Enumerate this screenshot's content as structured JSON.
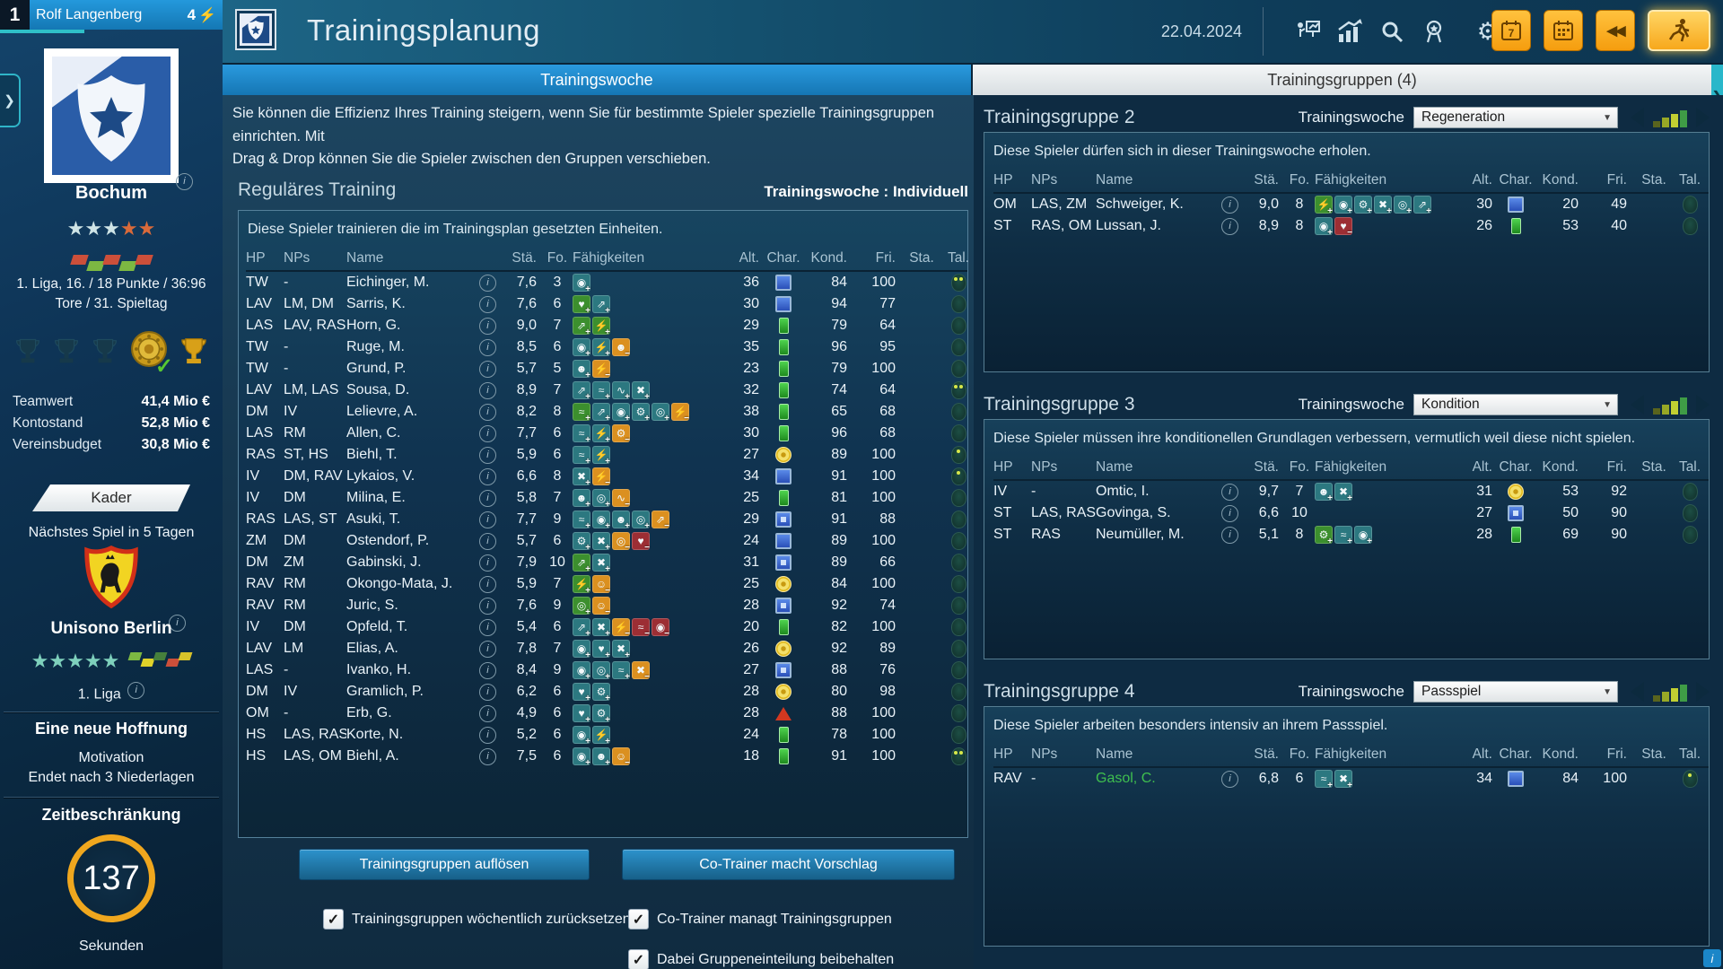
{
  "top_bar": {
    "slot_number": "1",
    "manager_name": "Rolf Langenberg",
    "badge_count": "4",
    "badge_icon": "lightning-icon"
  },
  "header": {
    "title": "Trainingsplanung",
    "date": "22.04.2024",
    "icons": [
      "trainer-presentation-icon",
      "statistics-icon",
      "search-icon",
      "medal-icon",
      "settings-icon"
    ],
    "quick_buttons": [
      "calendar-week-7-button",
      "calendar-button",
      "rewind-button",
      "continue-training-button"
    ],
    "active_quick_button": "continue-training-button",
    "calendar7_digit": "7"
  },
  "sidebar": {
    "club_name": "Bochum",
    "stars_light": 3,
    "stars_orange": 2,
    "form_colors": [
      "#cc4f3a",
      "#7cb842",
      "#cc4f3a",
      "#7cb842",
      "#cc4f3a"
    ],
    "league_line1": "1. Liga, 16. / 18 Punkte / 36:96",
    "league_line2": "Tore / 31. Spieltag",
    "trophies": [
      "trophy-dark-icon",
      "trophy-dark-icon",
      "trophy-dark-icon",
      "championship-plate-check-icon",
      "gold-cup-icon"
    ],
    "finances": [
      {
        "label": "Teamwert",
        "value": "41,4 Mio €"
      },
      {
        "label": "Kontostand",
        "value": "52,8 Mio €"
      },
      {
        "label": "Vereinsbudget",
        "value": "30,8 Mio €"
      }
    ],
    "kader_button": "Kader",
    "next_match": "Nächstes Spiel in 5 Tagen",
    "opponent": "Unisono Berlin",
    "opponent_stars": 5,
    "opponent_form_colors": [
      "#7cb842",
      "#e0d22a",
      "#46803c",
      "#cc4f3a",
      "#d8c22a"
    ],
    "opponent_league": "1. Liga",
    "story_title": "Eine neue Hoffnung",
    "motivation_label": "Motivation",
    "motivation_value": "Endet nach 3 Niederlagen",
    "timer_title": "Zeitbeschränkung",
    "timer_value": "137",
    "timer_unit": "Sekunden",
    "accent_orange": "#f0a71e"
  },
  "tabs": {
    "left": "Trainingswoche",
    "right": "Trainingsgruppen (4)"
  },
  "table_columns": [
    "HP",
    "NPs",
    "Name",
    "",
    "Stä.",
    "Fo.",
    "Fähigkeiten",
    "Alt.",
    "Char.",
    "Kond.",
    "Fri.",
    "Sta.",
    "Tal."
  ],
  "main": {
    "description_line1": "Sie können die Effizienz Ihres Training steigern, wenn Sie für bestimmte Spieler spezielle Trainingsgruppen einrichten. Mit",
    "description_line2": "Drag & Drop können Sie die Spieler zwischen den Gruppen verschieben.",
    "section_title": "Reguläres Training",
    "section_right": "Trainingswoche : Individuell",
    "note": "Diese Spieler trainieren die im Trainingsplan gesetzten Einheiten.",
    "players": [
      {
        "hp": "TW",
        "nps": "-",
        "name": "Eichinger, M.",
        "sta": "7,6",
        "fo": "3",
        "alt": "36",
        "char": "blue",
        "kond": "84",
        "fri": "100",
        "stam": "",
        "tal": 2,
        "skills": [
          {
            "c": "t",
            "t": "ball"
          }
        ]
      },
      {
        "hp": "LAV",
        "nps": "LM, DM",
        "name": "Sarris, K.",
        "sta": "7,6",
        "fo": "6",
        "alt": "30",
        "char": "blue",
        "kond": "94",
        "fri": "77",
        "stam": "",
        "tal": 0,
        "skills": [
          {
            "c": "g",
            "t": "heart"
          },
          {
            "c": "t",
            "t": "pass"
          }
        ]
      },
      {
        "hp": "LAS",
        "nps": "LAV, RAS",
        "name": "Horn, G.",
        "sta": "9,0",
        "fo": "7",
        "alt": "29",
        "char": "green",
        "kond": "79",
        "fri": "64",
        "stam": "",
        "tal": 0,
        "skills": [
          {
            "c": "g",
            "t": "pass"
          },
          {
            "c": "g",
            "t": "sprint"
          }
        ]
      },
      {
        "hp": "TW",
        "nps": "-",
        "name": "Ruge, M.",
        "sta": "8,5",
        "fo": "6",
        "alt": "35",
        "char": "green",
        "kond": "96",
        "fri": "95",
        "stam": "",
        "tal": 0,
        "skills": [
          {
            "c": "t",
            "t": "ball"
          },
          {
            "c": "t",
            "t": "sprint"
          },
          {
            "c": "o",
            "t": "head",
            "m": "-"
          }
        ]
      },
      {
        "hp": "TW",
        "nps": "-",
        "name": "Grund, P.",
        "sta": "5,7",
        "fo": "5",
        "alt": "23",
        "char": "green",
        "kond": "79",
        "fri": "100",
        "stam": "",
        "tal": 0,
        "skills": [
          {
            "c": "t",
            "t": "head"
          },
          {
            "c": "o",
            "t": "run",
            "m": "-"
          }
        ]
      },
      {
        "hp": "LAV",
        "nps": "LM, LAS",
        "name": "Sousa, D.",
        "sta": "8,9",
        "fo": "7",
        "alt": "32",
        "char": "green",
        "kond": "74",
        "fri": "64",
        "stam": "",
        "tal": 2,
        "skills": [
          {
            "c": "t",
            "t": "pass"
          },
          {
            "c": "t",
            "t": "pulse"
          },
          {
            "c": "t",
            "t": "flex"
          },
          {
            "c": "t",
            "t": "duel"
          }
        ]
      },
      {
        "hp": "DM",
        "nps": "IV",
        "name": "Lelievre, A.",
        "sta": "8,2",
        "fo": "8",
        "alt": "38",
        "char": "green",
        "kond": "65",
        "fri": "68",
        "stam": "",
        "tal": 0,
        "skills": [
          {
            "c": "g",
            "t": "pulse"
          },
          {
            "c": "t",
            "t": "pass"
          },
          {
            "c": "t",
            "t": "ball"
          },
          {
            "c": "t",
            "t": "gear"
          },
          {
            "c": "t",
            "t": "eye"
          },
          {
            "c": "o",
            "t": "run",
            "m": "-"
          }
        ]
      },
      {
        "hp": "LAS",
        "nps": "RM",
        "name": "Allen, C.",
        "sta": "7,7",
        "fo": "6",
        "alt": "30",
        "char": "green",
        "kond": "96",
        "fri": "68",
        "stam": "",
        "tal": 0,
        "skills": [
          {
            "c": "t",
            "t": "pulse"
          },
          {
            "c": "t",
            "t": "sprint"
          },
          {
            "c": "o",
            "t": "gear",
            "m": "-"
          }
        ]
      },
      {
        "hp": "RAS",
        "nps": "ST, HS",
        "name": "Biehl, T.",
        "sta": "5,9",
        "fo": "6",
        "alt": "27",
        "char": "yellow",
        "kond": "89",
        "fri": "100",
        "stam": "",
        "tal": 1,
        "skills": [
          {
            "c": "t",
            "t": "pulse"
          },
          {
            "c": "t",
            "t": "sprint"
          }
        ]
      },
      {
        "hp": "IV",
        "nps": "DM, RAV",
        "name": "Lykaios, V.",
        "sta": "6,6",
        "fo": "8",
        "alt": "34",
        "char": "blue",
        "kond": "91",
        "fri": "100",
        "stam": "",
        "tal": 1,
        "skills": [
          {
            "c": "t",
            "t": "duel"
          },
          {
            "c": "o",
            "t": "run",
            "m": "-"
          }
        ]
      },
      {
        "hp": "IV",
        "nps": "DM",
        "name": "Milina, E.",
        "sta": "5,8",
        "fo": "7",
        "alt": "25",
        "char": "green",
        "kond": "81",
        "fri": "100",
        "stam": "",
        "tal": 0,
        "skills": [
          {
            "c": "t",
            "t": "head"
          },
          {
            "c": "t",
            "t": "eye"
          },
          {
            "c": "o",
            "t": "flex",
            "m": "-"
          }
        ]
      },
      {
        "hp": "RAS",
        "nps": "LAS, ST",
        "name": "Asuki, T.",
        "sta": "7,7",
        "fo": "9",
        "alt": "29",
        "char": "blue-dot",
        "kond": "91",
        "fri": "88",
        "stam": "",
        "tal": 0,
        "skills": [
          {
            "c": "t",
            "t": "pulse"
          },
          {
            "c": "t",
            "t": "ball"
          },
          {
            "c": "t",
            "t": "head"
          },
          {
            "c": "t",
            "t": "eye"
          },
          {
            "c": "o",
            "t": "pass",
            "m": "-"
          }
        ]
      },
      {
        "hp": "ZM",
        "nps": "DM",
        "name": "Ostendorf, P.",
        "sta": "5,7",
        "fo": "6",
        "alt": "24",
        "char": "blue",
        "kond": "89",
        "fri": "100",
        "stam": "",
        "tal": 0,
        "skills": [
          {
            "c": "t",
            "t": "gear"
          },
          {
            "c": "t",
            "t": "duel"
          },
          {
            "c": "o",
            "t": "eye",
            "m": "-"
          },
          {
            "c": "r",
            "t": "heart",
            "m": "-"
          }
        ]
      },
      {
        "hp": "DM",
        "nps": "ZM",
        "name": "Gabinski, J.",
        "sta": "7,9",
        "fo": "10",
        "alt": "31",
        "char": "blue-dot",
        "kond": "89",
        "fri": "66",
        "stam": "",
        "tal": 0,
        "skills": [
          {
            "c": "g",
            "t": "pass"
          },
          {
            "c": "t",
            "t": "duel"
          }
        ]
      },
      {
        "hp": "RAV",
        "nps": "RM",
        "name": "Okongo-Mata, J.",
        "sta": "5,9",
        "fo": "7",
        "alt": "25",
        "char": "yellow",
        "kond": "84",
        "fri": "100",
        "stam": "",
        "tal": 0,
        "skills": [
          {
            "c": "g",
            "t": "sprint"
          },
          {
            "c": "o",
            "t": "group",
            "m": "-"
          }
        ]
      },
      {
        "hp": "RAV",
        "nps": "RM",
        "name": "Juric, S.",
        "sta": "7,6",
        "fo": "9",
        "alt": "28",
        "char": "blue-dot",
        "kond": "92",
        "fri": "74",
        "stam": "",
        "tal": 0,
        "skills": [
          {
            "c": "g",
            "t": "eye"
          },
          {
            "c": "o",
            "t": "group",
            "m": "-"
          }
        ]
      },
      {
        "hp": "IV",
        "nps": "DM",
        "name": "Opfeld, T.",
        "sta": "5,4",
        "fo": "6",
        "alt": "20",
        "char": "green",
        "kond": "82",
        "fri": "100",
        "stam": "",
        "tal": 0,
        "skills": [
          {
            "c": "t",
            "t": "pass"
          },
          {
            "c": "t",
            "t": "duel"
          },
          {
            "c": "o",
            "t": "run",
            "m": "-"
          },
          {
            "c": "r",
            "t": "pulse",
            "m": "-"
          },
          {
            "c": "r",
            "t": "ball",
            "m": "-"
          }
        ]
      },
      {
        "hp": "LAV",
        "nps": "LM",
        "name": "Elias, A.",
        "sta": "7,8",
        "fo": "7",
        "alt": "26",
        "char": "yellow",
        "kond": "92",
        "fri": "89",
        "stam": "",
        "tal": 0,
        "skills": [
          {
            "c": "t",
            "t": "ball"
          },
          {
            "c": "t",
            "t": "heart"
          },
          {
            "c": "t",
            "t": "duel"
          }
        ]
      },
      {
        "hp": "LAS",
        "nps": "-",
        "name": "Ivanko, H.",
        "sta": "8,4",
        "fo": "9",
        "alt": "27",
        "char": "blue-dot",
        "kond": "88",
        "fri": "76",
        "stam": "",
        "tal": 0,
        "skills": [
          {
            "c": "t",
            "t": "ball"
          },
          {
            "c": "t",
            "t": "eye"
          },
          {
            "c": "t",
            "t": "pulse"
          },
          {
            "c": "o",
            "t": "duel",
            "m": "-"
          }
        ]
      },
      {
        "hp": "DM",
        "nps": "IV",
        "name": "Gramlich, P.",
        "sta": "6,2",
        "fo": "6",
        "alt": "28",
        "char": "yellow",
        "kond": "80",
        "fri": "98",
        "stam": "",
        "tal": 0,
        "skills": [
          {
            "c": "t",
            "t": "heart"
          },
          {
            "c": "t",
            "t": "gear"
          }
        ]
      },
      {
        "hp": "OM",
        "nps": "-",
        "name": "Erb, G.",
        "sta": "4,9",
        "fo": "6",
        "alt": "28",
        "char": "red",
        "kond": "88",
        "fri": "100",
        "stam": "",
        "tal": 0,
        "skills": [
          {
            "c": "t",
            "t": "heart"
          },
          {
            "c": "t",
            "t": "gear"
          }
        ]
      },
      {
        "hp": "HS",
        "nps": "LAS, RAS",
        "name": "Korte, N.",
        "sta": "5,2",
        "fo": "6",
        "alt": "24",
        "char": "green",
        "kond": "78",
        "fri": "100",
        "stam": "",
        "tal": 0,
        "skills": [
          {
            "c": "t",
            "t": "ball"
          },
          {
            "c": "t",
            "t": "sprint"
          }
        ]
      },
      {
        "hp": "HS",
        "nps": "LAS, OM",
        "name": "Biehl, A.",
        "sta": "7,5",
        "fo": "6",
        "alt": "18",
        "char": "green",
        "kond": "91",
        "fri": "100",
        "stam": "",
        "tal": 2,
        "skills": [
          {
            "c": "t",
            "t": "ball"
          },
          {
            "c": "t",
            "t": "head"
          },
          {
            "c": "o",
            "t": "group",
            "m": "-"
          }
        ]
      }
    ],
    "buttons": [
      "Trainingsgruppen auflösen",
      "Co-Trainer macht Vorschlag"
    ],
    "checkboxes_left": [
      {
        "label": "Trainingsgruppen wöchentlich zurücksetzen",
        "checked": true
      }
    ],
    "checkboxes_right": [
      {
        "label": "Co-Trainer managt Trainingsgruppen",
        "checked": true
      },
      {
        "label": "Dabei Gruppeneinteilung beibehalten",
        "checked": true
      }
    ]
  },
  "groups": [
    {
      "title": "Trainingsgruppe 2",
      "week_label": "Trainingswoche",
      "week_value": "Regeneration",
      "description": "Diese Spieler dürfen sich in dieser Trainingswoche erholen.",
      "players": [
        {
          "hp": "OM",
          "nps": "LAS, ZM",
          "name": "Schweiger, K.",
          "sta": "9,0",
          "fo": "8",
          "alt": "30",
          "char": "blue",
          "kond": "20",
          "fri": "49",
          "stam": "",
          "tal": 0,
          "skills": [
            {
              "c": "g",
              "t": "sprint"
            },
            {
              "c": "t",
              "t": "ball"
            },
            {
              "c": "t",
              "t": "gear"
            },
            {
              "c": "t",
              "t": "duel"
            },
            {
              "c": "t",
              "t": "eye"
            },
            {
              "c": "t",
              "t": "pass"
            }
          ]
        },
        {
          "hp": "ST",
          "nps": "RAS, OM",
          "name": "Lussan, J.",
          "sta": "8,9",
          "fo": "8",
          "alt": "26",
          "char": "green",
          "kond": "53",
          "fri": "40",
          "stam": "",
          "tal": 0,
          "skills": [
            {
              "c": "t",
              "t": "ball"
            },
            {
              "c": "r",
              "t": "heart",
              "m": "-"
            }
          ]
        }
      ]
    },
    {
      "title": "Trainingsgruppe 3",
      "week_label": "Trainingswoche",
      "week_value": "Kondition",
      "description": "Diese Spieler müssen ihre konditionellen Grundlagen verbessern, vermutlich weil diese nicht spielen.",
      "players": [
        {
          "hp": "IV",
          "nps": "-",
          "name": "Omtic, I.",
          "sta": "9,7",
          "fo": "7",
          "alt": "31",
          "char": "yellow",
          "kond": "53",
          "fri": "92",
          "stam": "",
          "tal": 0,
          "skills": [
            {
              "c": "t",
              "t": "head"
            },
            {
              "c": "t",
              "t": "duel"
            }
          ]
        },
        {
          "hp": "ST",
          "nps": "LAS, RAS",
          "name": "Govinga, S.",
          "sta": "6,6",
          "fo": "10",
          "alt": "27",
          "char": "blue-dot",
          "kond": "50",
          "fri": "90",
          "stam": "",
          "tal": 0,
          "skills": []
        },
        {
          "hp": "ST",
          "nps": "RAS",
          "name": "Neumüller, M.",
          "sta": "5,1",
          "fo": "8",
          "alt": "28",
          "char": "green",
          "kond": "69",
          "fri": "90",
          "stam": "",
          "tal": 0,
          "skills": [
            {
              "c": "g",
              "t": "gear"
            },
            {
              "c": "t",
              "t": "pulse"
            },
            {
              "c": "t",
              "t": "ball"
            }
          ]
        }
      ]
    },
    {
      "title": "Trainingsgruppe 4",
      "week_label": "Trainingswoche",
      "week_value": "Passspiel",
      "description": "Diese Spieler arbeiten besonders intensiv an ihrem Passspiel.",
      "players": [
        {
          "hp": "RAV",
          "nps": "-",
          "name": "Gasol, C.",
          "name_highlight": "green",
          "sta": "6,8",
          "fo": "6",
          "alt": "34",
          "char": "blue",
          "kond": "84",
          "fri": "100",
          "stam": "",
          "tal": 1,
          "skills": [
            {
              "c": "t",
              "t": "pulse"
            },
            {
              "c": "t",
              "t": "duel"
            }
          ]
        }
      ]
    }
  ],
  "misc": {
    "bottom_info_icon": "info-icon",
    "edge_collapse_left": "chevron-right-icon",
    "edge_collapse_right": "chevron-right-icon"
  }
}
